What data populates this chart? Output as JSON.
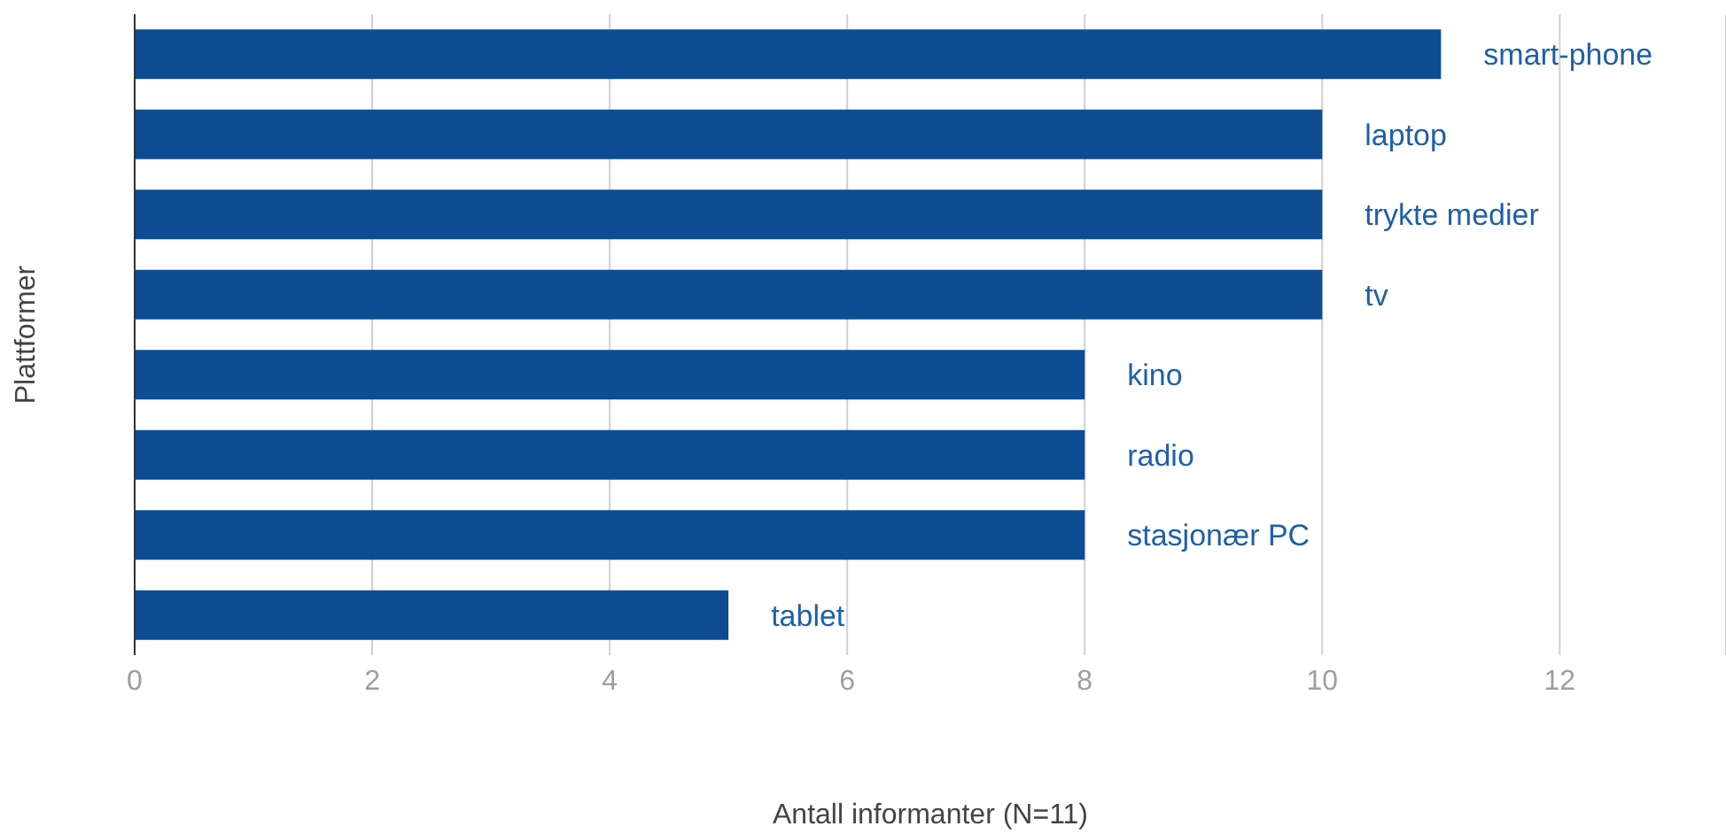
{
  "chart_data": {
    "type": "bar",
    "orientation": "horizontal",
    "xlabel": "Antall informanter (N=11)",
    "ylabel": "Plattformer",
    "categories": [
      "smart-phone",
      "laptop",
      "trykte medier",
      "tv",
      "kino",
      "radio",
      "stasjonær PC",
      "tablet"
    ],
    "values": [
      11,
      10,
      10,
      10,
      8,
      8,
      8,
      5
    ],
    "color": "#0d4c92",
    "xlim": [
      0,
      13.4
    ],
    "xticks": [
      0,
      2,
      4,
      6,
      8,
      10,
      12
    ],
    "grid": "x",
    "tick_labels": "x"
  }
}
